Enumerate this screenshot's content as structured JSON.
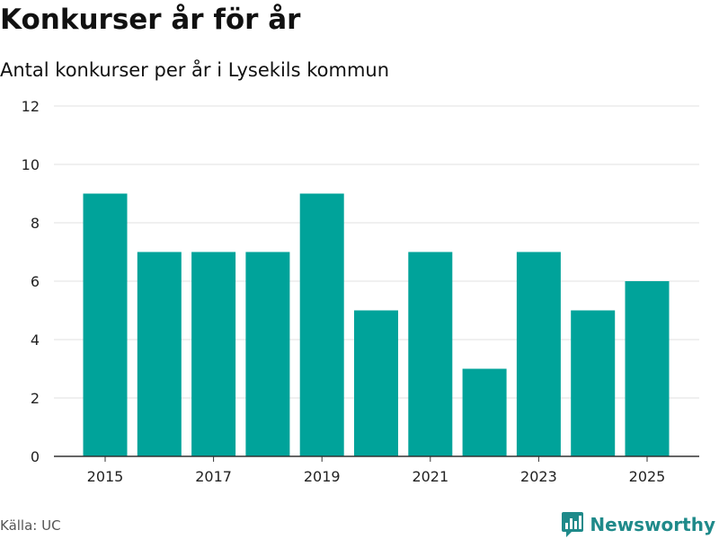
{
  "header": {
    "title": "Konkurser år för år",
    "subtitle": "Antal konkurser per år i Lysekils kommun"
  },
  "footer": {
    "source": "Källa: UC",
    "brand": "Newsworthy",
    "brand_icon": "newsworthy-logo-icon"
  },
  "colors": {
    "bar": "#00a39a",
    "grid": "#e2e2e2",
    "axis": "#333333",
    "brand": "#1f8a8a"
  },
  "chart_data": {
    "type": "bar",
    "title": "Konkurser år för år",
    "subtitle": "Antal konkurser per år i Lysekils kommun",
    "xlabel": "",
    "ylabel": "",
    "categories": [
      "2015",
      "2016",
      "2017",
      "2018",
      "2019",
      "2020",
      "2021",
      "2022",
      "2023",
      "2024",
      "2025"
    ],
    "values": [
      9,
      7,
      7,
      7,
      9,
      5,
      7,
      3,
      7,
      5,
      6
    ],
    "x_tick_labels": [
      "2015",
      "2017",
      "2019",
      "2021",
      "2023",
      "2025"
    ],
    "y_ticks": [
      0,
      2,
      4,
      6,
      8,
      10,
      12
    ],
    "ylim": [
      0,
      12
    ],
    "grid": true,
    "legend": "none"
  }
}
